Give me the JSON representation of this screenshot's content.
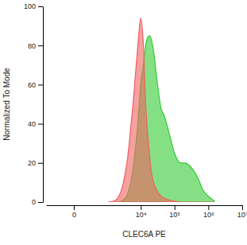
{
  "chart_data": {
    "type": "area",
    "x_label": "CLEC6A PE",
    "y_label": "Normalized To Mode",
    "log": "x",
    "x": [
      1000,
      1500,
      2000,
      3000,
      4000,
      5000,
      6000,
      7000,
      8000,
      9000,
      10000,
      12000,
      14000,
      16000,
      18000,
      20000,
      25000,
      30000,
      40000,
      50000,
      70000,
      100000,
      150000,
      200000,
      300000,
      500000,
      700000,
      1000000,
      1500000
    ],
    "series": [
      {
        "color": "#33cc33",
        "values": [
          0,
          0,
          0,
          1,
          4,
          10,
          18,
          28,
          38,
          50,
          60,
          70,
          80,
          84,
          85,
          84,
          75,
          63,
          48,
          44,
          35,
          25,
          20,
          20,
          18,
          12,
          6,
          3,
          0.5
        ]
      },
      {
        "color": "#f06060",
        "values": [
          0,
          0.5,
          2,
          10,
          22,
          38,
          52,
          66,
          78,
          88,
          94,
          80,
          50,
          35,
          25,
          17,
          9,
          6,
          3,
          2,
          1,
          0.5,
          0,
          0,
          0,
          0,
          0,
          0,
          0
        ]
      }
    ],
    "xlim": [
      -600,
      10000000
    ],
    "xticks": [
      0,
      {
        "value": 10000,
        "label": "10⁴"
      },
      {
        "value": 100000,
        "label": "10⁵"
      },
      {
        "value": 1000000,
        "label": "10⁶"
      },
      {
        "value": 10000000,
        "label": "10⁷"
      }
    ],
    "ylim": [
      0,
      100
    ],
    "yticks": [
      0,
      20,
      40,
      60,
      80,
      100
    ],
    "grid": false
  }
}
